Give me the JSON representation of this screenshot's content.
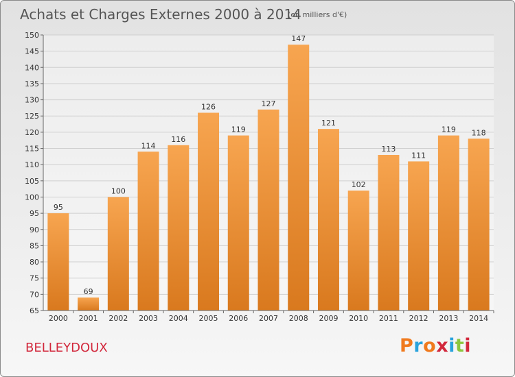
{
  "header": {
    "title": "Achats et Charges Externes 2000 à 2014",
    "subtitle": "(en milliers d'€)"
  },
  "footer": {
    "commune": "BELLEYDOUX",
    "brand": "Proxiti",
    "brand_colors": [
      "#f07a1e",
      "#29a3dd",
      "#f07a1e",
      "#d2283c",
      "#29a3dd",
      "#8cc63f",
      "#d2283c"
    ]
  },
  "colors": {
    "bar_light": "#f7a550",
    "bar_dark": "#d9791e",
    "grid": "#cfcfcf",
    "axis": "#666666"
  },
  "chart_data": {
    "type": "bar",
    "title": "Achats et Charges Externes 2000 à 2014",
    "subtitle": "(en milliers d'€)",
    "categories": [
      "2000",
      "2001",
      "2002",
      "2003",
      "2004",
      "2005",
      "2006",
      "2007",
      "2008",
      "2009",
      "2010",
      "2011",
      "2012",
      "2013",
      "2014"
    ],
    "values": [
      95,
      69,
      100,
      114,
      116,
      126,
      119,
      127,
      147,
      121,
      102,
      113,
      111,
      119,
      118
    ],
    "ylim": [
      65,
      150
    ],
    "yticks": [
      65,
      70,
      75,
      80,
      85,
      90,
      95,
      100,
      105,
      110,
      115,
      120,
      125,
      130,
      135,
      140,
      145,
      150
    ],
    "grid": true,
    "legend": "none"
  }
}
